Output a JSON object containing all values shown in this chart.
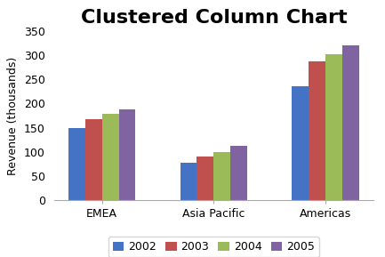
{
  "title": "Clustered Column Chart",
  "categories": [
    "EMEA",
    "Asia Pacific",
    "Americas"
  ],
  "series": [
    {
      "label": "2002",
      "color": "#4472C4",
      "values": [
        150,
        78,
        235
      ]
    },
    {
      "label": "2003",
      "color": "#C0504D",
      "values": [
        168,
        91,
        287
      ]
    },
    {
      "label": "2004",
      "color": "#9BBB59",
      "values": [
        179,
        100,
        302
      ]
    },
    {
      "label": "2005",
      "color": "#8064A2",
      "values": [
        188,
        112,
        320
      ]
    }
  ],
  "ylabel": "Revenue (thousands)",
  "ylim": [
    0,
    350
  ],
  "yticks": [
    0,
    50,
    100,
    150,
    200,
    250,
    300,
    350
  ],
  "background_color": "#ffffff",
  "title_fontsize": 16,
  "axis_fontsize": 9,
  "tick_fontsize": 9,
  "legend_fontsize": 9
}
